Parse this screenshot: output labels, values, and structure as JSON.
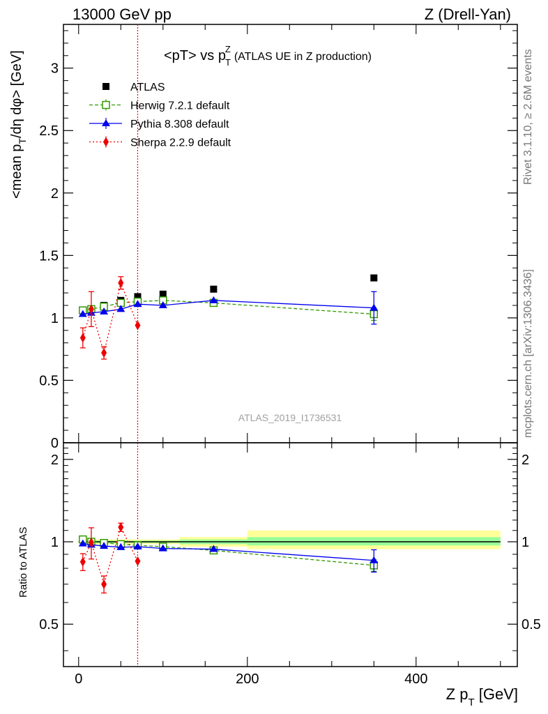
{
  "header": {
    "left": "13000 GeV pp",
    "right": "Z (Drell-Yan)"
  },
  "side_labels": {
    "rivet": "Rivet 3.1.10, ≥ 2.6M events",
    "mcplots": "mcplots.cern.ch [arXiv:1306.3436]"
  },
  "colors": {
    "atlas": "#000000",
    "herwig": "#339900",
    "pythia": "#0000ee",
    "sherpa": "#ee0000",
    "band_yellow": "#ffff99",
    "band_green": "#99ff99",
    "cut_line": "#ee0000"
  },
  "chart_data": [
    {
      "type": "scatter",
      "title_main": "<pT> vs p",
      "title_sup": "Z",
      "title_sub": "T",
      "title_rest": "(ATLAS UE in Z production)",
      "ylabel_pre": "<mean p",
      "ylabel_sub": "T",
      "ylabel_post": "/dη dφ> [GeV]",
      "watermark": "ATLAS_2019_I1736531",
      "ylim": [
        0,
        3.35
      ],
      "xlim": [
        -18,
        520
      ],
      "yticks": [
        0,
        0.5,
        1,
        1.5,
        2,
        2.5,
        3
      ],
      "ytick_labels": [
        "0",
        "0.5",
        "1",
        "1.5",
        "2",
        "2.5",
        "3"
      ],
      "vline_x": 70,
      "legend": [
        {
          "key": "atlas",
          "label": "ATLAS"
        },
        {
          "key": "herwig",
          "label": "Herwig 7.2.1 default"
        },
        {
          "key": "pythia",
          "label": "Pythia 8.308 default"
        },
        {
          "key": "sherpa",
          "label": "Sherpa 2.2.9 default"
        }
      ],
      "series": [
        {
          "key": "atlas",
          "name": "ATLAS",
          "marker": "square",
          "x": [
            5,
            15,
            30,
            50,
            70,
            100,
            160,
            350
          ],
          "y": [
            1.06,
            1.07,
            1.1,
            1.14,
            1.17,
            1.19,
            1.23,
            1.32
          ]
        },
        {
          "key": "herwig",
          "name": "Herwig 7.2.1 default",
          "marker": "open-square",
          "x": [
            5,
            15,
            30,
            50,
            70,
            100,
            160,
            350
          ],
          "y": [
            1.06,
            1.07,
            1.09,
            1.12,
            1.13,
            1.14,
            1.12,
            1.03
          ],
          "err": [
            0.01,
            0.01,
            0.01,
            0.01,
            0.01,
            0.01,
            0.02,
            0.05
          ]
        },
        {
          "key": "pythia",
          "name": "Pythia 8.308 default",
          "marker": "triangle",
          "x": [
            5,
            15,
            30,
            50,
            70,
            100,
            160,
            350
          ],
          "y": [
            1.03,
            1.04,
            1.05,
            1.07,
            1.11,
            1.1,
            1.14,
            1.08
          ],
          "err": [
            0.01,
            0.01,
            0.01,
            0.01,
            0.01,
            0.01,
            0.02,
            0.13
          ]
        },
        {
          "key": "sherpa",
          "name": "Sherpa 2.2.9 default",
          "marker": "diamond",
          "x": [
            5,
            15,
            30,
            50,
            70
          ],
          "y": [
            0.84,
            1.07,
            0.72,
            1.28,
            0.94
          ],
          "err": [
            0.08,
            0.14,
            0.05,
            0.05,
            0.02
          ]
        }
      ]
    },
    {
      "type": "scatter",
      "ylabel": "Ratio to ATLAS",
      "ylim": [
        0.35,
        2.3
      ],
      "xlim": [
        -18,
        520
      ],
      "yscale": "log",
      "yticks": [
        0.5,
        1,
        2
      ],
      "ytick_labels": [
        "0.5",
        "1",
        "2"
      ],
      "xticks": [
        0,
        200,
        400
      ],
      "xtick_labels": [
        "0",
        "200",
        "400"
      ],
      "xlabel_pre": "Z p",
      "xlabel_sub": "T",
      "xlabel_post": " [GeV]",
      "vline_x": 70,
      "reference": 1.0,
      "bands": [
        {
          "x0": 0,
          "x1": 120,
          "yellow": [
            0.98,
            1.02
          ],
          "green": [
            0.99,
            1.01
          ]
        },
        {
          "x0": 120,
          "x1": 200,
          "yellow": [
            0.96,
            1.04
          ],
          "green": [
            0.98,
            1.02
          ]
        },
        {
          "x0": 200,
          "x1": 500,
          "yellow": [
            0.94,
            1.1
          ],
          "green": [
            0.97,
            1.04
          ]
        }
      ],
      "series": [
        {
          "key": "herwig",
          "name": "Herwig 7.2.1 default",
          "marker": "open-square",
          "x": [
            5,
            15,
            30,
            50,
            70,
            100,
            160,
            350
          ],
          "y": [
            1.02,
            1.0,
            0.99,
            0.98,
            0.97,
            0.96,
            0.93,
            0.82
          ],
          "err": [
            0.01,
            0.01,
            0.01,
            0.01,
            0.01,
            0.01,
            0.02,
            0.04
          ]
        },
        {
          "key": "pythia",
          "name": "Pythia 8.308 default",
          "marker": "triangle",
          "x": [
            5,
            15,
            30,
            50,
            70,
            100,
            160,
            350
          ],
          "y": [
            0.985,
            0.975,
            0.965,
            0.955,
            0.96,
            0.945,
            0.94,
            0.855
          ],
          "err": [
            0.01,
            0.01,
            0.01,
            0.01,
            0.01,
            0.01,
            0.02,
            0.08
          ]
        },
        {
          "key": "sherpa",
          "name": "Sherpa 2.2.9 default",
          "marker": "diamond",
          "x": [
            5,
            15,
            30,
            50,
            70
          ],
          "y": [
            0.845,
            0.995,
            0.7,
            1.13,
            0.85
          ],
          "err": [
            0.06,
            0.13,
            0.05,
            0.04,
            0.02
          ]
        }
      ]
    }
  ]
}
